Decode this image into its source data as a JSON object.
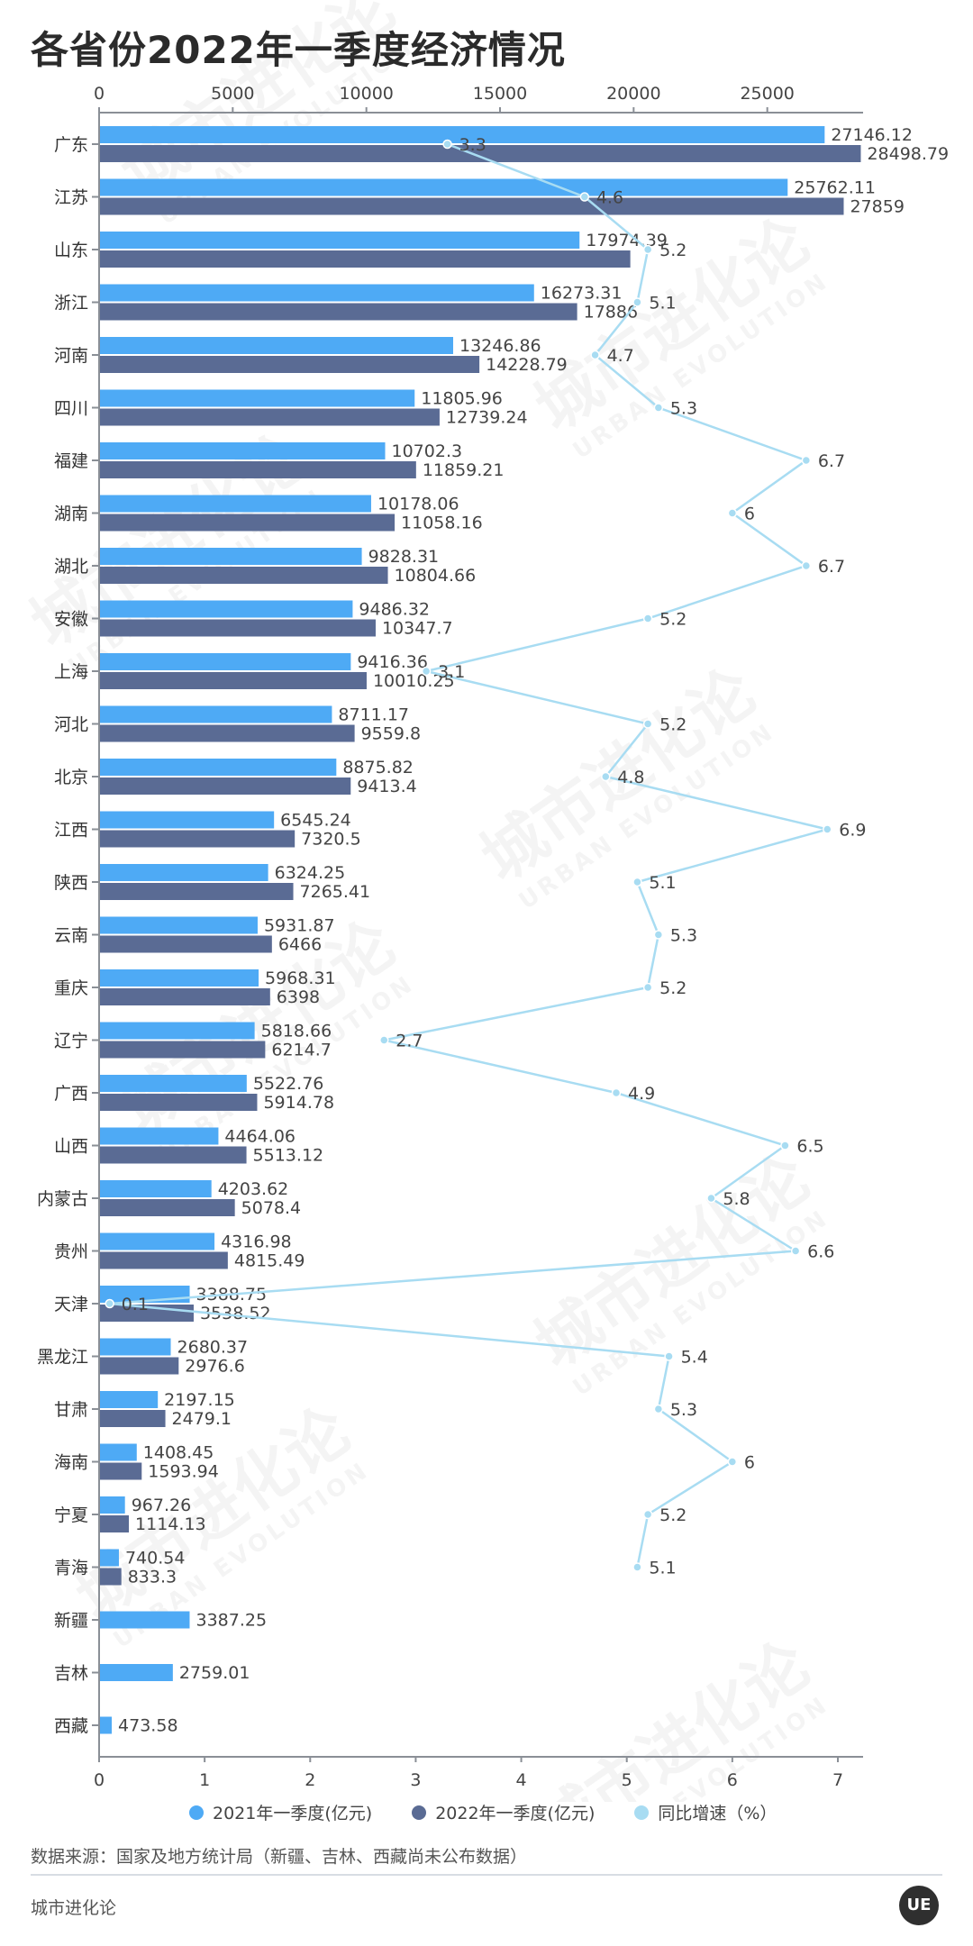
{
  "title": "各省份2022年一季度经济情况",
  "legend": {
    "items": [
      {
        "label": "2021年一季度(亿元)",
        "color": "#4eaaf5"
      },
      {
        "label": "2022年一季度(亿元)",
        "color": "#5a6b94"
      },
      {
        "label": "同比增速（%）",
        "color": "#a8dcf2"
      }
    ]
  },
  "source": "数据来源：国家及地方统计局（新疆、吉林、西藏尚未公布数据）",
  "brand": "城市进化论",
  "logo_text": "UE",
  "watermark": {
    "text": "城市进化论",
    "subtext": "URBAN EVOLUTION"
  },
  "chart_data": {
    "type": "bar",
    "orientation": "horizontal",
    "categories": [
      "广东",
      "江苏",
      "山东",
      "浙江",
      "河南",
      "四川",
      "福建",
      "湖南",
      "湖北",
      "安徽",
      "上海",
      "河北",
      "北京",
      "江西",
      "陕西",
      "云南",
      "重庆",
      "辽宁",
      "广西",
      "山西",
      "内蒙古",
      "贵州",
      "天津",
      "黑龙江",
      "甘肃",
      "海南",
      "宁夏",
      "青海",
      "新疆",
      "吉林",
      "西藏"
    ],
    "series": [
      {
        "name": "2021年一季度(亿元)",
        "color": "#4eaaf5",
        "values": [
          27146.12,
          25762.11,
          17974.39,
          16273.31,
          13246.86,
          11805.96,
          10702.3,
          10178.06,
          9828.31,
          9486.32,
          9416.36,
          8711.17,
          8875.82,
          6545.24,
          6324.25,
          5931.87,
          5968.31,
          5818.66,
          5522.76,
          4464.06,
          4203.62,
          4316.98,
          3388.75,
          2680.37,
          2197.15,
          1408.45,
          967.26,
          740.54,
          3387.25,
          2759.01,
          473.58
        ],
        "labels": [
          "27146.12",
          "25762.11",
          "17974.39",
          "16273.31",
          "13246.86",
          "11805.96",
          "10702.3",
          "10178.06",
          "9828.31",
          "9486.32",
          "9416.36",
          "8711.17",
          "8875.82",
          "6545.24",
          "6324.25",
          "5931.87",
          "5968.31",
          "5818.66",
          "5522.76",
          "4464.06",
          "4203.62",
          "4316.98",
          "3388.75",
          "2680.37",
          "2197.15",
          "1408.45",
          "967.26",
          "740.54",
          "3387.25",
          "2759.01",
          "473.58"
        ]
      },
      {
        "name": "2022年一季度(亿元)",
        "color": "#5a6b94",
        "values": [
          28498.79,
          27859,
          19875.0,
          17886,
          14228.79,
          12739.24,
          11859.21,
          11058.16,
          10804.66,
          10347.7,
          10010.25,
          9559.8,
          9413.4,
          7320.5,
          7265.41,
          6466,
          6398,
          6214.7,
          5914.78,
          5513.12,
          5078.4,
          4815.49,
          3538.52,
          2976.6,
          2479.1,
          1593.94,
          1114.13,
          833.3,
          null,
          null,
          null
        ],
        "labels": [
          "28498.79",
          "27859",
          "",
          "17886",
          "14228.79",
          "12739.24",
          "11859.21",
          "11058.16",
          "10804.66",
          "10347.7",
          "10010.25",
          "9559.8",
          "9413.4",
          "7320.5",
          "7265.41",
          "6466",
          "6398",
          "6214.7",
          "5914.78",
          "5513.12",
          "5078.4",
          "4815.49",
          "3538.52",
          "2976.6",
          "2479.1",
          "1593.94",
          "1114.13",
          "833.3",
          "",
          "",
          ""
        ]
      },
      {
        "name": "同比增速（%）",
        "color": "#a8dcf2",
        "type": "line",
        "axis": "bottom",
        "values": [
          3.3,
          4.6,
          5.2,
          5.1,
          4.7,
          5.3,
          6.7,
          6,
          6.7,
          5.2,
          3.1,
          5.2,
          4.8,
          6.9,
          5.1,
          5.3,
          5.2,
          2.7,
          4.9,
          6.5,
          5.8,
          6.6,
          0.1,
          5.4,
          5.3,
          6,
          5.2,
          5.1,
          null,
          null,
          null
        ],
        "labels": [
          "3.3",
          "4.6",
          "5.2",
          "5.1",
          "4.7",
          "5.3",
          "6.7",
          "6",
          "6.7",
          "5.2",
          "3.1",
          "5.2",
          "4.8",
          "6.9",
          "5.1",
          "5.3",
          "5.2",
          "2.7",
          "4.9",
          "6.5",
          "5.8",
          "6.6",
          "0.1",
          "5.4",
          "5.3",
          "6",
          "5.2",
          "5.1",
          "",
          "",
          ""
        ]
      }
    ],
    "top_axis": {
      "ticks": [
        "0",
        "5000",
        "10000",
        "15000",
        "20000",
        "25000"
      ],
      "range": [
        0,
        30000
      ]
    },
    "bottom_axis": {
      "ticks": [
        "0",
        "1",
        "2",
        "3",
        "4",
        "5",
        "6",
        "7"
      ],
      "range": [
        0,
        7.25
      ]
    }
  }
}
